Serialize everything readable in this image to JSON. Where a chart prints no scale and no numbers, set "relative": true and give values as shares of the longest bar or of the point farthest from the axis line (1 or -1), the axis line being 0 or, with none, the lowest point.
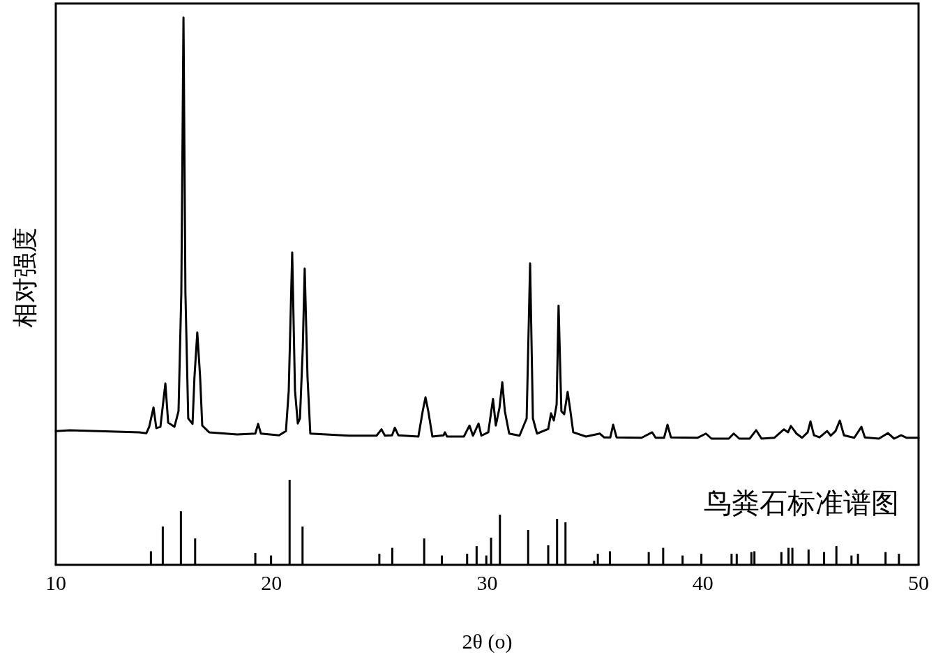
{
  "chart_data": [
    {
      "type": "line",
      "relative": true,
      "ylabel": "相对强度",
      "xlim": [
        10,
        50
      ],
      "tick_labels": false,
      "series": [
        {
          "color": "#000000",
          "x": [
            10.0,
            10.65,
            13.88,
            14.2,
            14.33,
            14.53,
            14.66,
            14.85,
            15.08,
            15.21,
            15.5,
            15.69,
            15.82,
            15.92,
            16.01,
            16.14,
            16.34,
            16.43,
            16.56,
            16.69,
            16.79,
            17.11,
            18.41,
            19.25,
            19.38,
            19.51,
            20.35,
            20.67,
            20.8,
            20.96,
            21.09,
            21.22,
            21.32,
            21.45,
            21.54,
            21.67,
            21.8,
            23.58,
            24.87,
            25.1,
            25.26,
            25.59,
            25.72,
            25.88,
            26.81,
            27.01,
            27.14,
            27.27,
            27.46,
            27.98,
            28.04,
            28.14,
            28.92,
            29.18,
            29.34,
            29.6,
            29.73,
            30.05,
            30.27,
            30.4,
            30.57,
            30.7,
            30.82,
            31.02,
            31.5,
            31.83,
            31.99,
            32.12,
            32.31,
            32.83,
            32.96,
            33.09,
            33.22,
            33.31,
            33.44,
            33.57,
            33.73,
            33.86,
            33.99,
            34.58,
            35.22,
            35.42,
            35.71,
            35.84,
            36.0,
            37.16,
            37.65,
            37.81,
            38.2,
            38.36,
            38.52,
            39.75,
            40.14,
            40.4,
            41.2,
            41.43,
            41.69,
            42.17,
            42.47,
            42.72,
            43.31,
            43.76,
            43.95,
            44.08,
            44.34,
            44.6,
            44.86,
            44.99,
            45.15,
            45.41,
            45.76,
            45.93,
            46.15,
            46.35,
            46.54,
            47.02,
            47.35,
            47.51,
            48.16,
            48.58,
            48.87,
            49.19,
            49.45,
            50.0
          ],
          "values": [
            0.018,
            0.02,
            0.015,
            0.013,
            0.028,
            0.074,
            0.025,
            0.028,
            0.131,
            0.038,
            0.028,
            0.065,
            0.346,
            1,
            0.346,
            0.048,
            0.035,
            0.147,
            0.252,
            0.147,
            0.031,
            0.015,
            0.01,
            0.012,
            0.035,
            0.012,
            0.008,
            0.018,
            0.114,
            0.442,
            0.114,
            0.036,
            0.048,
            0.214,
            0.404,
            0.147,
            0.012,
            0.007,
            0.007,
            0.022,
            0.007,
            0.008,
            0.026,
            0.008,
            0.005,
            0.065,
            0.098,
            0.065,
            0.005,
            0.008,
            0.015,
            0.005,
            0.005,
            0.031,
            0.007,
            0.036,
            0.007,
            0.015,
            0.094,
            0.031,
            0.073,
            0.134,
            0.065,
            0.012,
            0.007,
            0.048,
            0.416,
            0.048,
            0.012,
            0.023,
            0.06,
            0.043,
            0.081,
            0.316,
            0.065,
            0.058,
            0.111,
            0.065,
            0.015,
            0.005,
            0.012,
            0.003,
            0.003,
            0.033,
            0.003,
            0.002,
            0.015,
            0.002,
            0.002,
            0.033,
            0.003,
            0.002,
            0.012,
            0,
            0,
            0.012,
            0,
            0,
            0.02,
            0,
            0.002,
            0.022,
            0.015,
            0.03,
            0.012,
            0.002,
            0.015,
            0.041,
            0.008,
            0.003,
            0.018,
            0.007,
            0.018,
            0.043,
            0.008,
            0.002,
            0.028,
            0.003,
            0,
            0.013,
            0,
            0.008,
            0.002,
            0.002
          ]
        }
      ]
    },
    {
      "type": "bar",
      "relative": true,
      "xlim": [
        10,
        50
      ],
      "xticks": [
        10,
        20,
        30,
        40,
        50
      ],
      "xlabel": "2θ (o)",
      "annotations": [
        "鸟粪石标准谱图"
      ],
      "series": [
        {
          "color": "#000000",
          "x": [
            14.41,
            14.96,
            15.8,
            16.46,
            19.25,
            19.98,
            20.84,
            21.44,
            25.0,
            25.6,
            27.08,
            27.9,
            29.07,
            29.51,
            29.96,
            30.18,
            30.59,
            31.9,
            32.83,
            33.24,
            33.63,
            34.96,
            35.13,
            35.69,
            37.49,
            38.16,
            39.06,
            39.93,
            41.33,
            41.57,
            42.25,
            42.39,
            43.64,
            43.97,
            44.15,
            44.9,
            45.62,
            46.19,
            46.89,
            47.19,
            48.47,
            49.09
          ],
          "values": [
            0.16,
            0.45,
            0.63,
            0.31,
            0.14,
            0.11,
            1,
            0.45,
            0.13,
            0.2,
            0.31,
            0.11,
            0.13,
            0.22,
            0.11,
            0.32,
            0.59,
            0.41,
            0.23,
            0.54,
            0.5,
            0.05,
            0.13,
            0.16,
            0.15,
            0.2,
            0.11,
            0.13,
            0.13,
            0.13,
            0.15,
            0.16,
            0.15,
            0.2,
            0.2,
            0.18,
            0.15,
            0.22,
            0.11,
            0.13,
            0.15,
            0.13
          ]
        }
      ]
    }
  ]
}
